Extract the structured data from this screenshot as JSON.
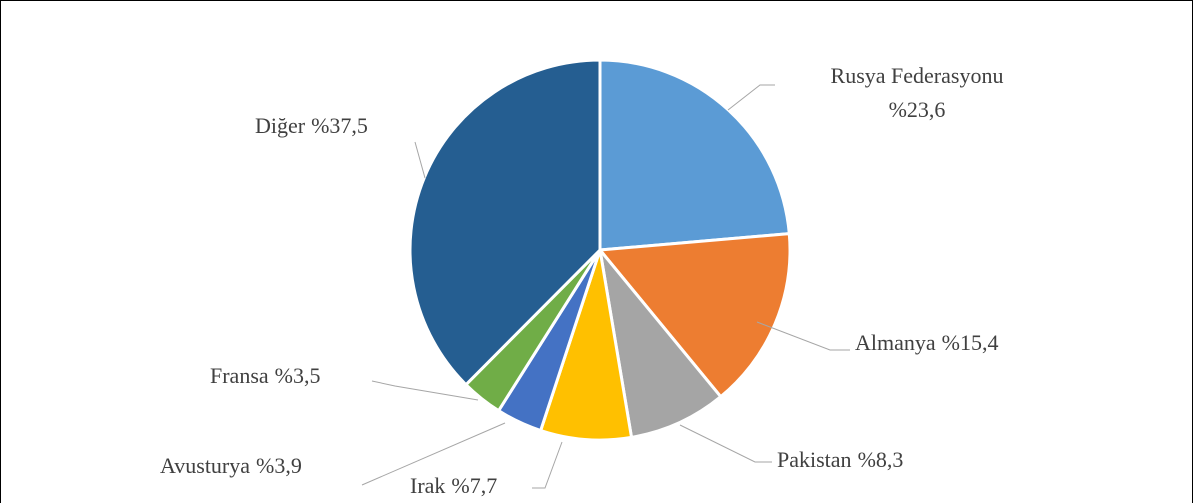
{
  "chart_data": {
    "type": "pie",
    "categories": [
      "Rusya Federasyonu",
      "Almanya",
      "Pakistan",
      "Irak",
      "Avusturya",
      "Fransa",
      "Diğer"
    ],
    "values": [
      23.6,
      15.4,
      8.3,
      7.7,
      3.9,
      3.5,
      37.5
    ],
    "value_labels": [
      "%23,6",
      "%15,4",
      "%8,3",
      "%7,7",
      "%3,9",
      "%3,5",
      "%37,5"
    ],
    "colors": [
      "#5b9bd5",
      "#ed7d31",
      "#a5a5a5",
      "#ffc000",
      "#4472c4",
      "#70ad47",
      "#255e91"
    ]
  }
}
